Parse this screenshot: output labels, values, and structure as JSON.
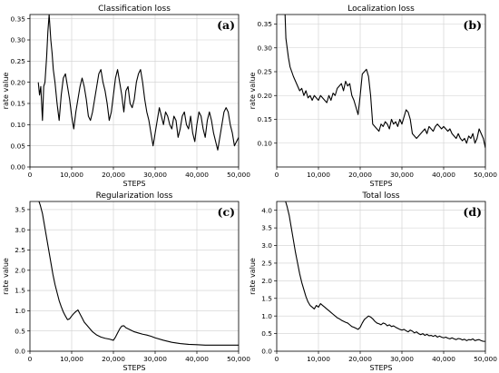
{
  "chart_data": [
    {
      "type": "line",
      "title": "Classification loss",
      "panel_label": "(a)",
      "xlabel": "STEPS",
      "ylabel": "rate value",
      "xlim": [
        0,
        50000
      ],
      "ylim": [
        0,
        0.36
      ],
      "xticks": [
        0,
        10000,
        20000,
        30000,
        40000,
        50000
      ],
      "xtick_labels": [
        "0",
        "10,000",
        "20,000",
        "30,000",
        "40,000",
        "50,000"
      ],
      "yticks": [
        0,
        0.05,
        0.1,
        0.15,
        0.2,
        0.25,
        0.3,
        0.35
      ],
      "ytick_labels": [
        "0.00",
        "0.05",
        "0.10",
        "0.15",
        "0.20",
        "0.25",
        "0.30",
        "0.35"
      ],
      "grid": true,
      "series": [
        {
          "x": [
            2000,
            2300,
            2600,
            3000,
            3300,
            3600,
            4000,
            4300,
            4600,
            5000,
            5300,
            5600,
            6000,
            6500,
            7000,
            7500,
            8000,
            8500,
            9000,
            9500,
            10000,
            10500,
            11000,
            11500,
            12000,
            12500,
            13000,
            13500,
            14000,
            14500,
            15000,
            15500,
            16000,
            16500,
            17000,
            17500,
            18000,
            18500,
            19000,
            19500,
            20000,
            20500,
            21000,
            21500,
            22000,
            22500,
            23000,
            23500,
            24000,
            24500,
            25000,
            25500,
            26000,
            26500,
            27000,
            27500,
            28000,
            28500,
            29000,
            29500,
            30000,
            30500,
            31000,
            31500,
            32000,
            32500,
            33000,
            33500,
            34000,
            34500,
            35000,
            35500,
            36000,
            36500,
            37000,
            37500,
            38000,
            38500,
            39000,
            39500,
            40000,
            40500,
            41000,
            41500,
            42000,
            42500,
            43000,
            43500,
            44000,
            44500,
            45000,
            45500,
            46000,
            46500,
            47000,
            47500,
            48000,
            48500,
            49000,
            49500,
            50000
          ],
          "y": [
            0.2,
            0.17,
            0.19,
            0.11,
            0.19,
            0.2,
            0.26,
            0.32,
            0.36,
            0.3,
            0.27,
            0.23,
            0.2,
            0.15,
            0.11,
            0.17,
            0.21,
            0.22,
            0.19,
            0.16,
            0.12,
            0.09,
            0.13,
            0.16,
            0.19,
            0.21,
            0.19,
            0.16,
            0.12,
            0.11,
            0.13,
            0.16,
            0.19,
            0.22,
            0.23,
            0.2,
            0.18,
            0.15,
            0.11,
            0.13,
            0.17,
            0.21,
            0.23,
            0.2,
            0.17,
            0.13,
            0.18,
            0.19,
            0.15,
            0.14,
            0.16,
            0.2,
            0.22,
            0.23,
            0.2,
            0.16,
            0.13,
            0.11,
            0.08,
            0.05,
            0.08,
            0.11,
            0.14,
            0.12,
            0.1,
            0.13,
            0.12,
            0.1,
            0.09,
            0.12,
            0.11,
            0.07,
            0.09,
            0.12,
            0.13,
            0.1,
            0.09,
            0.12,
            0.08,
            0.06,
            0.1,
            0.13,
            0.12,
            0.09,
            0.07,
            0.11,
            0.13,
            0.11,
            0.08,
            0.06,
            0.04,
            0.07,
            0.1,
            0.13,
            0.14,
            0.13,
            0.1,
            0.08,
            0.05,
            0.06,
            0.07
          ]
        }
      ]
    },
    {
      "type": "line",
      "title": "Localization loss",
      "panel_label": "(b)",
      "xlabel": "STEPS",
      "ylabel": "rate value",
      "xlim": [
        0,
        50000
      ],
      "ylim": [
        0.05,
        0.37
      ],
      "xticks": [
        0,
        10000,
        20000,
        30000,
        40000,
        50000
      ],
      "xtick_labels": [
        "0",
        "10,000",
        "20,000",
        "30,000",
        "40,000",
        "50,000"
      ],
      "yticks": [
        0.1,
        0.15,
        0.2,
        0.25,
        0.3,
        0.35
      ],
      "ytick_labels": [
        "0.10",
        "0.15",
        "0.20",
        "0.25",
        "0.30",
        "0.35"
      ],
      "grid": true,
      "series": [
        {
          "x": [
            2000,
            2200,
            2500,
            2800,
            3200,
            3600,
            4000,
            4500,
            5000,
            5500,
            6000,
            6500,
            7000,
            7500,
            8000,
            8500,
            9000,
            9500,
            10000,
            10500,
            11000,
            11500,
            12000,
            12500,
            13000,
            13500,
            14000,
            14500,
            15000,
            15500,
            16000,
            16500,
            17000,
            17500,
            18000,
            18500,
            19000,
            19500,
            20000,
            20500,
            21000,
            21500,
            22000,
            22500,
            23000,
            23500,
            24000,
            24500,
            25000,
            25500,
            26000,
            26500,
            27000,
            27500,
            28000,
            28500,
            29000,
            29500,
            30000,
            30500,
            31000,
            31500,
            32000,
            32500,
            33000,
            33500,
            34000,
            34500,
            35000,
            35500,
            36000,
            36500,
            37000,
            37500,
            38000,
            38500,
            39000,
            39500,
            40000,
            40500,
            41000,
            41500,
            42000,
            42500,
            43000,
            43500,
            44000,
            44500,
            45000,
            45500,
            46000,
            46500,
            47000,
            47500,
            48000,
            48500,
            49000,
            49500,
            50000
          ],
          "y": [
            0.37,
            0.32,
            0.3,
            0.28,
            0.26,
            0.25,
            0.24,
            0.23,
            0.22,
            0.21,
            0.215,
            0.2,
            0.21,
            0.195,
            0.2,
            0.19,
            0.2,
            0.195,
            0.19,
            0.2,
            0.195,
            0.19,
            0.185,
            0.2,
            0.19,
            0.205,
            0.2,
            0.215,
            0.22,
            0.225,
            0.21,
            0.23,
            0.22,
            0.225,
            0.2,
            0.19,
            0.175,
            0.16,
            0.2,
            0.245,
            0.25,
            0.255,
            0.24,
            0.2,
            0.14,
            0.135,
            0.13,
            0.125,
            0.14,
            0.135,
            0.145,
            0.14,
            0.13,
            0.15,
            0.14,
            0.145,
            0.135,
            0.15,
            0.14,
            0.155,
            0.17,
            0.165,
            0.15,
            0.12,
            0.115,
            0.11,
            0.115,
            0.12,
            0.125,
            0.13,
            0.12,
            0.135,
            0.13,
            0.125,
            0.135,
            0.14,
            0.135,
            0.13,
            0.135,
            0.13,
            0.125,
            0.13,
            0.12,
            0.115,
            0.11,
            0.12,
            0.11,
            0.105,
            0.11,
            0.1,
            0.115,
            0.11,
            0.12,
            0.1,
            0.11,
            0.13,
            0.12,
            0.11,
            0.09
          ]
        }
      ]
    },
    {
      "type": "line",
      "title": "Regularization loss",
      "panel_label": "(c)",
      "xlabel": "STEPS",
      "ylabel": "rate value",
      "xlim": [
        0,
        50000
      ],
      "ylim": [
        0,
        3.7
      ],
      "xticks": [
        0,
        10000,
        20000,
        30000,
        40000,
        50000
      ],
      "xtick_labels": [
        "0",
        "10,000",
        "20,000",
        "30,000",
        "40,000",
        "50,000"
      ],
      "yticks": [
        0,
        0.5,
        1.0,
        1.5,
        2.0,
        2.5,
        3.0,
        3.5
      ],
      "ytick_labels": [
        "0.0",
        "0.5",
        "1.0",
        "1.5",
        "2.0",
        "2.5",
        "3.0",
        "3.5"
      ],
      "grid": true,
      "series": [
        {
          "x": [
            2000,
            2500,
            3000,
            3500,
            4000,
            4500,
            5000,
            5500,
            6000,
            6500,
            7000,
            7500,
            8000,
            8500,
            9000,
            9500,
            10000,
            10500,
            11000,
            11500,
            12000,
            12500,
            13000,
            14000,
            15000,
            16000,
            17000,
            18000,
            19000,
            20000,
            20500,
            21000,
            21500,
            22000,
            22500,
            23000,
            24000,
            25000,
            26000,
            27000,
            28000,
            29000,
            30000,
            32000,
            34000,
            36000,
            38000,
            40000,
            42000,
            44000,
            46000,
            48000,
            50000
          ],
          "y": [
            3.75,
            3.6,
            3.4,
            3.1,
            2.8,
            2.5,
            2.2,
            1.9,
            1.65,
            1.45,
            1.25,
            1.1,
            0.97,
            0.87,
            0.78,
            0.8,
            0.87,
            0.93,
            0.98,
            1.02,
            0.92,
            0.82,
            0.72,
            0.6,
            0.48,
            0.4,
            0.35,
            0.32,
            0.3,
            0.27,
            0.35,
            0.45,
            0.55,
            0.62,
            0.63,
            0.58,
            0.53,
            0.48,
            0.45,
            0.42,
            0.4,
            0.37,
            0.33,
            0.27,
            0.22,
            0.19,
            0.17,
            0.16,
            0.15,
            0.15,
            0.15,
            0.15,
            0.15
          ]
        }
      ]
    },
    {
      "type": "line",
      "title": "Total loss",
      "panel_label": "(d)",
      "xlabel": "STEPS",
      "ylabel": "rate value",
      "xlim": [
        0,
        50000
      ],
      "ylim": [
        0,
        4.25
      ],
      "xticks": [
        0,
        10000,
        20000,
        30000,
        40000,
        50000
      ],
      "xtick_labels": [
        "0",
        "10,000",
        "20,000",
        "30,000",
        "40,000",
        "50,000"
      ],
      "yticks": [
        0,
        0.5,
        1.0,
        1.5,
        2.0,
        2.5,
        3.0,
        3.5,
        4.0
      ],
      "ytick_labels": [
        "0.0",
        "0.5",
        "1.0",
        "1.5",
        "2.0",
        "2.5",
        "3.0",
        "3.5",
        "4.0"
      ],
      "grid": true,
      "series": [
        {
          "x": [
            2000,
            2500,
            3000,
            3500,
            4000,
            4500,
            5000,
            5500,
            6000,
            6500,
            7000,
            7500,
            8000,
            8500,
            9000,
            9500,
            10000,
            10500,
            11000,
            11500,
            12000,
            12500,
            13000,
            13500,
            14000,
            14500,
            15000,
            15500,
            16000,
            16500,
            17000,
            17500,
            18000,
            18500,
            19000,
            19500,
            20000,
            20500,
            21000,
            21500,
            22000,
            22500,
            23000,
            23500,
            24000,
            24500,
            25000,
            25500,
            26000,
            26500,
            27000,
            27500,
            28000,
            28500,
            29000,
            29500,
            30000,
            30500,
            31000,
            31500,
            32000,
            32500,
            33000,
            33500,
            34000,
            34500,
            35000,
            35500,
            36000,
            36500,
            37000,
            37500,
            38000,
            38500,
            39000,
            39500,
            40000,
            40500,
            41000,
            41500,
            42000,
            42500,
            43000,
            43500,
            44000,
            44500,
            45000,
            45500,
            46000,
            46500,
            47000,
            47500,
            48000,
            48500,
            49000,
            49500,
            50000
          ],
          "y": [
            4.3,
            4.1,
            3.85,
            3.5,
            3.15,
            2.8,
            2.5,
            2.2,
            1.95,
            1.75,
            1.55,
            1.4,
            1.3,
            1.25,
            1.2,
            1.3,
            1.25,
            1.35,
            1.3,
            1.25,
            1.2,
            1.15,
            1.1,
            1.05,
            1.0,
            0.95,
            0.92,
            0.88,
            0.85,
            0.82,
            0.8,
            0.75,
            0.7,
            0.68,
            0.65,
            0.62,
            0.68,
            0.8,
            0.9,
            0.95,
            1.0,
            0.97,
            0.92,
            0.85,
            0.8,
            0.78,
            0.75,
            0.8,
            0.78,
            0.72,
            0.75,
            0.7,
            0.72,
            0.68,
            0.65,
            0.62,
            0.6,
            0.62,
            0.58,
            0.55,
            0.6,
            0.57,
            0.52,
            0.55,
            0.5,
            0.47,
            0.5,
            0.45,
            0.48,
            0.44,
            0.45,
            0.42,
            0.45,
            0.4,
            0.43,
            0.4,
            0.38,
            0.4,
            0.37,
            0.35,
            0.38,
            0.35,
            0.33,
            0.36,
            0.35,
            0.32,
            0.34,
            0.3,
            0.33,
            0.32,
            0.35,
            0.3,
            0.32,
            0.33,
            0.3,
            0.28,
            0.28
          ]
        }
      ]
    }
  ]
}
